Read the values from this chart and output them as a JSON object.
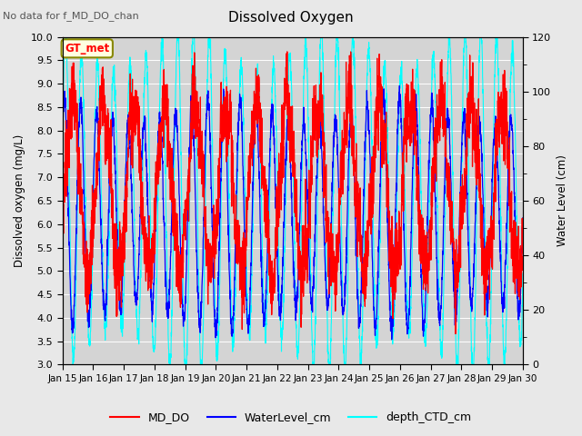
{
  "title": "Dissolved Oxygen",
  "top_text": "No data for f_MD_DO_chan",
  "annotation": "GT_met",
  "ylabel_left": "Dissolved oxygen (mg/L)",
  "ylabel_right": "Water Level (cm)",
  "ylim_left": [
    3.0,
    10.0
  ],
  "ylim_right": [
    0,
    120
  ],
  "xtick_labels": [
    "Jan 15",
    "Jan 16",
    "Jan 17",
    "Jan 18",
    "Jan 19",
    "Jan 20",
    "Jan 21",
    "Jan 22",
    "Jan 23",
    "Jan 24",
    "Jan 25",
    "Jan 26",
    "Jan 27",
    "Jan 28",
    "Jan 29",
    "Jan 30"
  ],
  "legend_labels": [
    "MD_DO",
    "WaterLevel_cm",
    "depth_CTD_cm"
  ],
  "bg_color": "#e8e8e8",
  "plot_bg": "#d4d4d4",
  "n_points": 3000,
  "seed": 7
}
